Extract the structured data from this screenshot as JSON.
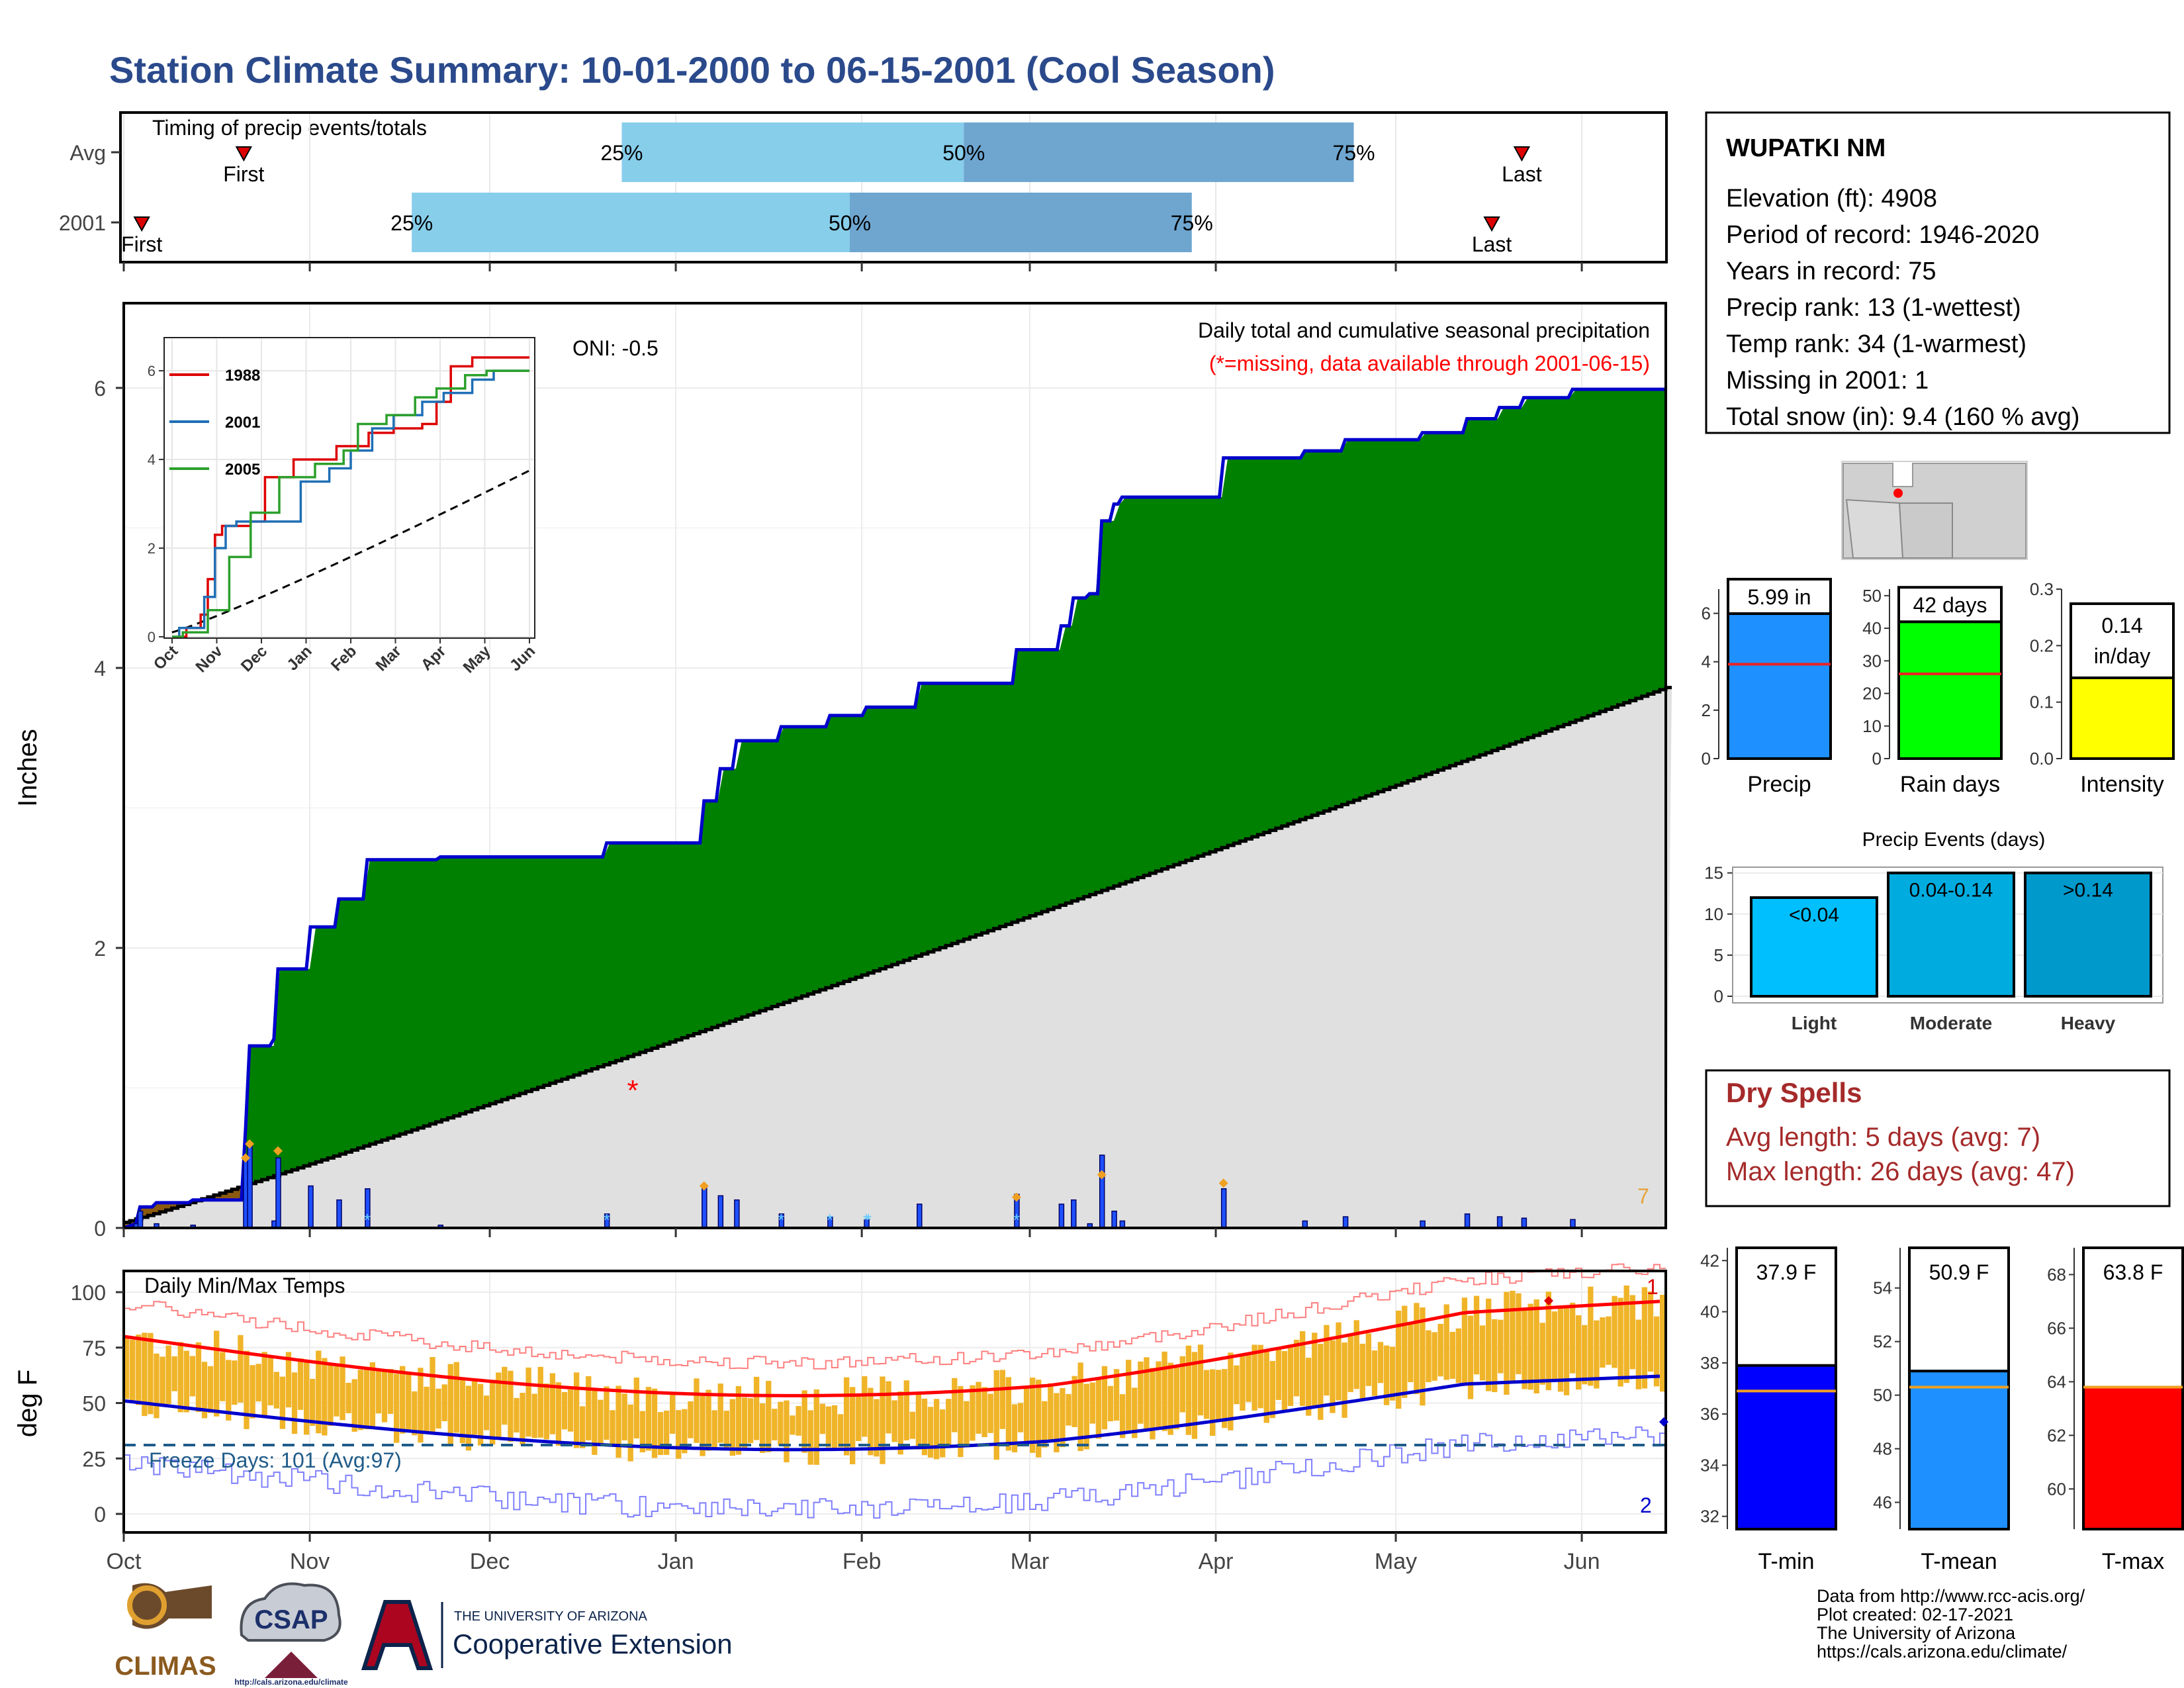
{
  "title": "Station Climate Summary: 10-01-2000 to 06-15-2001 (Cool Season)",
  "timing": {
    "label": "Timing of precip events/totals",
    "rows": [
      {
        "name": "Avg",
        "first": "First",
        "last": "Last",
        "q25": "25%",
        "q50": "50%",
        "q75": "75%",
        "first_day": 20,
        "q25_day": 83,
        "q50_day": 140,
        "q75_day": 205,
        "last_day": 233
      },
      {
        "name": "2001",
        "first": "First",
        "last": "Last",
        "q25": "25%",
        "q50": "50%",
        "q75": "75%",
        "first_day": 3,
        "q25_day": 48,
        "q50_day": 121,
        "q75_day": 178,
        "last_day": 228
      }
    ]
  },
  "station": {
    "name": "WUPATKI NM",
    "lines": [
      "Elevation (ft): 4908",
      "Period of record: 1946-2020",
      "Years in record: 75",
      "Precip rank: 13 (1-wettest)",
      "Temp rank: 34 (1-warmest)",
      "Missing in 2001: 1",
      "Total snow (in): 9.4 (160 % avg)"
    ]
  },
  "precip_panel": {
    "ylabel": "Inches",
    "oni": "ONI: -0.5",
    "caption": "Daily total and cumulative seasonal precipitation",
    "missing_note": "(*=missing, data available through 2001-06-15)",
    "missing_marker": "*",
    "corner_count": "7",
    "yticks": [
      "0",
      "2",
      "4",
      "6"
    ],
    "colors": {
      "above": "#008000",
      "below": "#8B5A0F",
      "normal_fill": "#e0e0e0",
      "line": "#0000cc"
    }
  },
  "inset": {
    "yticks": [
      "0",
      "2",
      "4",
      "6"
    ],
    "months": [
      "Oct",
      "Nov",
      "Dec",
      "Jan",
      "Feb",
      "Mar",
      "Apr",
      "May",
      "Jun"
    ],
    "legend": [
      {
        "name": "1988",
        "color": "#dd0000"
      },
      {
        "name": "2001",
        "color": "#1f6fb5"
      },
      {
        "name": "2005",
        "color": "#2ca02c"
      }
    ]
  },
  "temp_panel": {
    "ylabel": "deg F",
    "label": "Daily Min/Max Temps",
    "freeze": "Freeze Days: 101 (Avg:97)",
    "top_count": "1",
    "bottom_count": "2",
    "yticks": [
      "0",
      "25",
      "50",
      "75",
      "100"
    ]
  },
  "months": [
    "Oct",
    "Nov",
    "Dec",
    "Jan",
    "Feb",
    "Mar",
    "Apr",
    "May",
    "Jun"
  ],
  "precip_bars": {
    "yticks": [
      "0",
      "2",
      "4",
      "6"
    ],
    "items": [
      {
        "label": "Precip",
        "value": "5.99 in",
        "v": 5.99,
        "avg": 3.9,
        "color": "#1e90ff",
        "max": 7
      },
      {
        "label": "Rain days",
        "value": "42 days",
        "v": 42,
        "avg": 26,
        "color": "#00ff00",
        "max": 50
      },
      {
        "label": "Intensity",
        "value": "0.14",
        "value2": "in/day",
        "v": 0.143,
        "avg": 0.15,
        "color": "#ffff00",
        "max": 0.3
      }
    ],
    "rain_yticks": [
      "0",
      "10",
      "20",
      "30",
      "40",
      "50"
    ],
    "int_yticks": [
      "0.0",
      "0.1",
      "0.2",
      "0.3"
    ]
  },
  "events": {
    "title": "Precip Events (days)",
    "yticks": [
      "0",
      "5",
      "10",
      "15"
    ],
    "bars": [
      {
        "label": "Light",
        "tag": "<0.04",
        "v": 12,
        "color": "#00bfff"
      },
      {
        "label": "Moderate",
        "tag": "0.04-0.14",
        "v": 15,
        "color": "#00acdf"
      },
      {
        "label": "Heavy",
        "tag": ">0.14",
        "v": 15,
        "color": "#0099cc"
      }
    ]
  },
  "dry": {
    "title": "Dry Spells",
    "avg": "Avg length: 5 days (avg: 7)",
    "max": "Max length: 26 days (avg: 47)"
  },
  "tbars": [
    {
      "label": "T-min",
      "value": "37.9 F",
      "v": 37.9,
      "avg": 36.9,
      "min": 31.5,
      "max": 42.5,
      "color": "#0000ff",
      "ticks": [
        "32",
        "34",
        "36",
        "38",
        "40",
        "42"
      ]
    },
    {
      "label": "T-mean",
      "value": "50.9 F",
      "v": 50.9,
      "avg": 50.3,
      "min": 45,
      "max": 55.5,
      "color": "#1e90ff",
      "ticks": [
        "46",
        "48",
        "50",
        "52",
        "54"
      ]
    },
    {
      "label": "T-max",
      "value": "63.8 F",
      "v": 63.8,
      "avg": 63.8,
      "min": 58.5,
      "max": 69,
      "color": "#ff0000",
      "ticks": [
        "60",
        "62",
        "64",
        "66",
        "68"
      ]
    }
  ],
  "footer": {
    "lines": [
      "Data from http://www.rcc-acis.org/",
      "Plot created: 02-17-2021",
      "The University of Arizona",
      "https://cals.arizona.edu/climate/"
    ],
    "climas": "CLIMAS",
    "csap": "CSAP",
    "csap_url": "http://cals.arizona.edu/climate",
    "ua_small": "THE UNIVERSITY OF ARIZONA",
    "ua_big": "Cooperative Extension"
  }
}
